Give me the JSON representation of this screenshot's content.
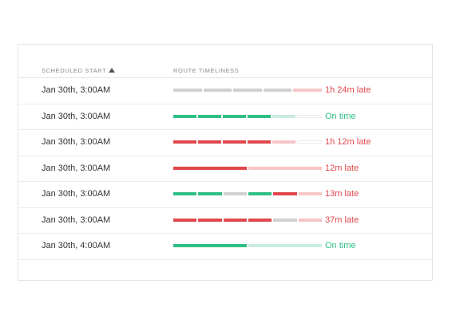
{
  "table": {
    "headers": {
      "scheduled_start": "SCHEDULED START",
      "route_timeliness": "ROUTE TIMELINESS"
    },
    "sort_icon": "triangle-up-icon",
    "colors": {
      "on_time": "#2fbf83",
      "late": "#e0474c",
      "neutral": "#d0d0d0",
      "late_light": "#f7c5c7",
      "on_time_light": "#c9ecdd"
    },
    "rows": [
      {
        "scheduled_start": "Jan 30th, 3:00AM",
        "status": "1h 24m late",
        "status_kind": "late",
        "segments": [
          "gray",
          "gray",
          "gray",
          "gray",
          "pink"
        ]
      },
      {
        "scheduled_start": "Jan 30th, 3:00AM",
        "status": "On time",
        "status_kind": "ontime",
        "segments": [
          "ontime",
          "ontime",
          "ontime",
          "ontime",
          "mint",
          "empty"
        ]
      },
      {
        "scheduled_start": "Jan 30th, 3:00AM",
        "status": "1h 12m late",
        "status_kind": "late",
        "segments": [
          "late",
          "late",
          "late",
          "late",
          "pink",
          "empty"
        ]
      },
      {
        "scheduled_start": "Jan 30th, 3:00AM",
        "status": "12m late",
        "status_kind": "late",
        "segments": [
          "late",
          "pink"
        ]
      },
      {
        "scheduled_start": "Jan 30th, 3:00AM",
        "status": "13m late",
        "status_kind": "late",
        "segments": [
          "ontime",
          "ontime",
          "gray",
          "ontime",
          "late",
          "pink"
        ]
      },
      {
        "scheduled_start": "Jan 30th, 3:00AM",
        "status": "37m late",
        "status_kind": "late",
        "segments": [
          "late",
          "late",
          "late",
          "late",
          "gray",
          "pink"
        ]
      },
      {
        "scheduled_start": "Jan 30th, 4:00AM",
        "status": "On time",
        "status_kind": "ontime",
        "segments": [
          "ontime",
          "mint"
        ]
      }
    ]
  }
}
